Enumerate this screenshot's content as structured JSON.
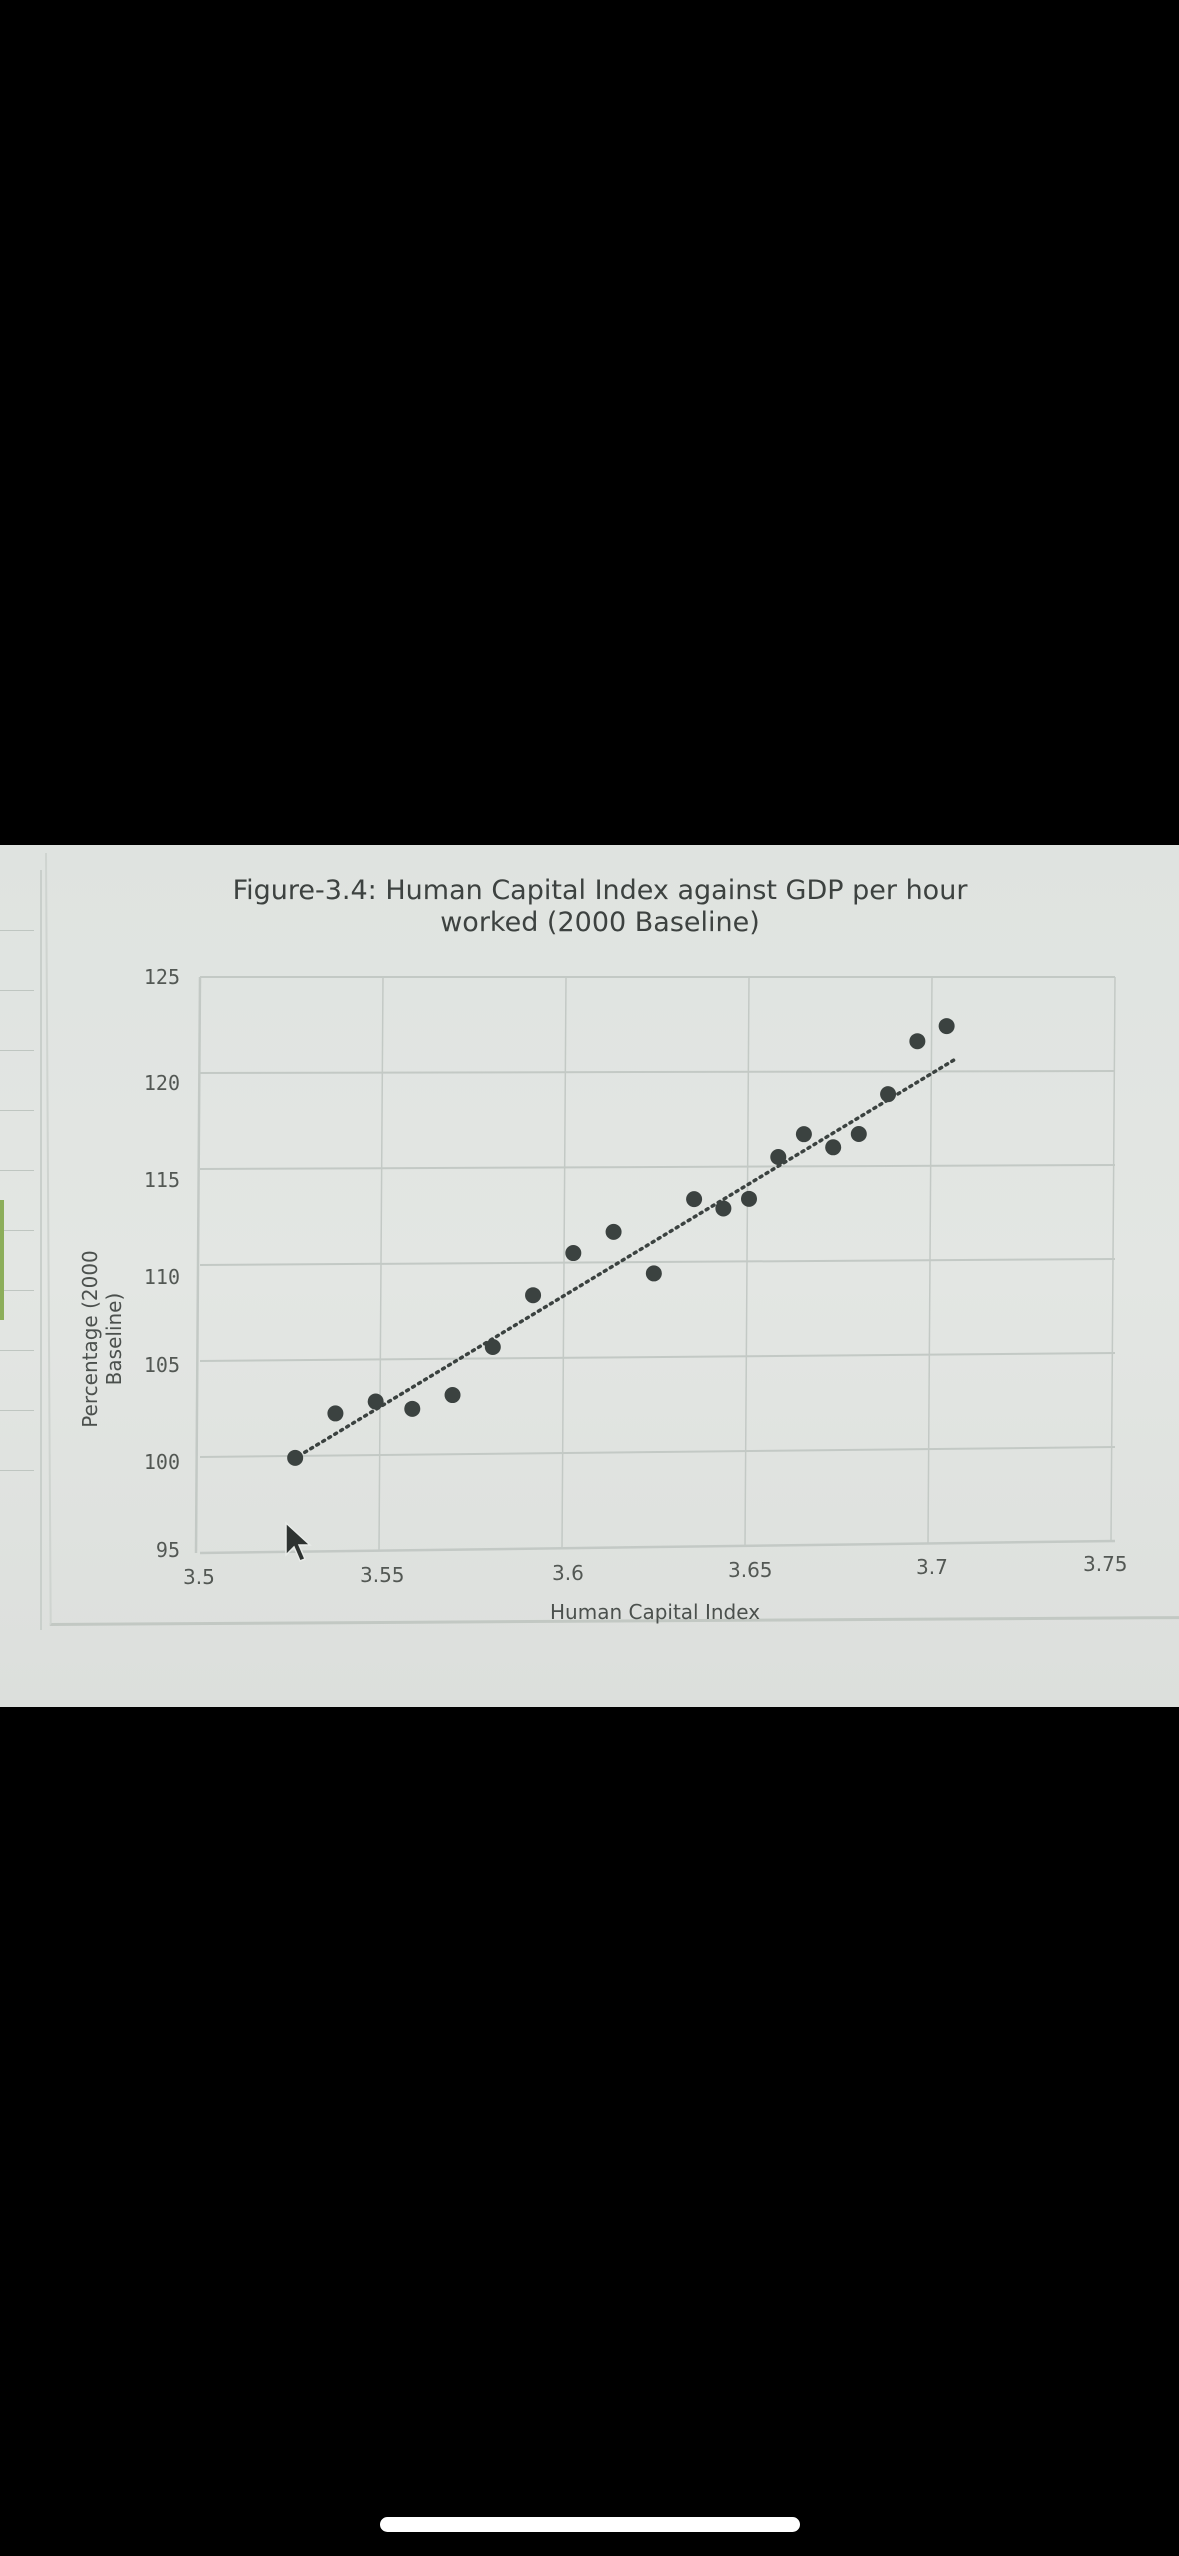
{
  "chart_data": {
    "type": "scatter",
    "title": "Figure-3.4: Human Capital Index against GDP per hour worked (2000 Baseline)",
    "title_lines": [
      "Figure-3.4: Human Capital Index against GDP per hour",
      "worked (2000 Baseline)"
    ],
    "xlabel": "Human Capital Index",
    "ylabel": "Percentage (2000 Baseline)",
    "xlim": [
      3.5,
      3.75
    ],
    "ylim": [
      95,
      125
    ],
    "x_ticks": [
      "3.5",
      "3.55",
      "3.6",
      "3.65",
      "3.7",
      "3.75"
    ],
    "y_ticks": [
      "125",
      "120",
      "115",
      "110",
      "105",
      "100",
      "95"
    ],
    "grid": true,
    "legend": null,
    "series": [
      {
        "name": "GDP per hour worked",
        "marker": "circle",
        "color": "#3b4240",
        "points": [
          {
            "x": 3.526,
            "y": 99.9
          },
          {
            "x": 3.537,
            "y": 102.2
          },
          {
            "x": 3.548,
            "y": 102.8
          },
          {
            "x": 3.558,
            "y": 102.4
          },
          {
            "x": 3.569,
            "y": 103.1
          },
          {
            "x": 3.58,
            "y": 105.6
          },
          {
            "x": 3.591,
            "y": 108.3
          },
          {
            "x": 3.602,
            "y": 110.5
          },
          {
            "x": 3.613,
            "y": 111.6
          },
          {
            "x": 3.624,
            "y": 109.4
          },
          {
            "x": 3.635,
            "y": 113.3
          },
          {
            "x": 3.643,
            "y": 112.8
          },
          {
            "x": 3.65,
            "y": 113.3
          },
          {
            "x": 3.658,
            "y": 115.5
          },
          {
            "x": 3.665,
            "y": 116.7
          },
          {
            "x": 3.673,
            "y": 116.0
          },
          {
            "x": 3.68,
            "y": 116.7
          },
          {
            "x": 3.688,
            "y": 118.8
          },
          {
            "x": 3.696,
            "y": 121.6
          },
          {
            "x": 3.704,
            "y": 122.4
          }
        ]
      }
    ],
    "trendline": {
      "type": "linear",
      "style": "dotted",
      "color": "#3b4240",
      "start": {
        "x": 3.527,
        "y": 100.0
      },
      "end": {
        "x": 3.706,
        "y": 120.6
      }
    }
  },
  "colors": {
    "screen_bg": "#e0e3e0",
    "grid": "#c3c9c5",
    "axis_text": "#535854",
    "marker": "#3b4240"
  }
}
